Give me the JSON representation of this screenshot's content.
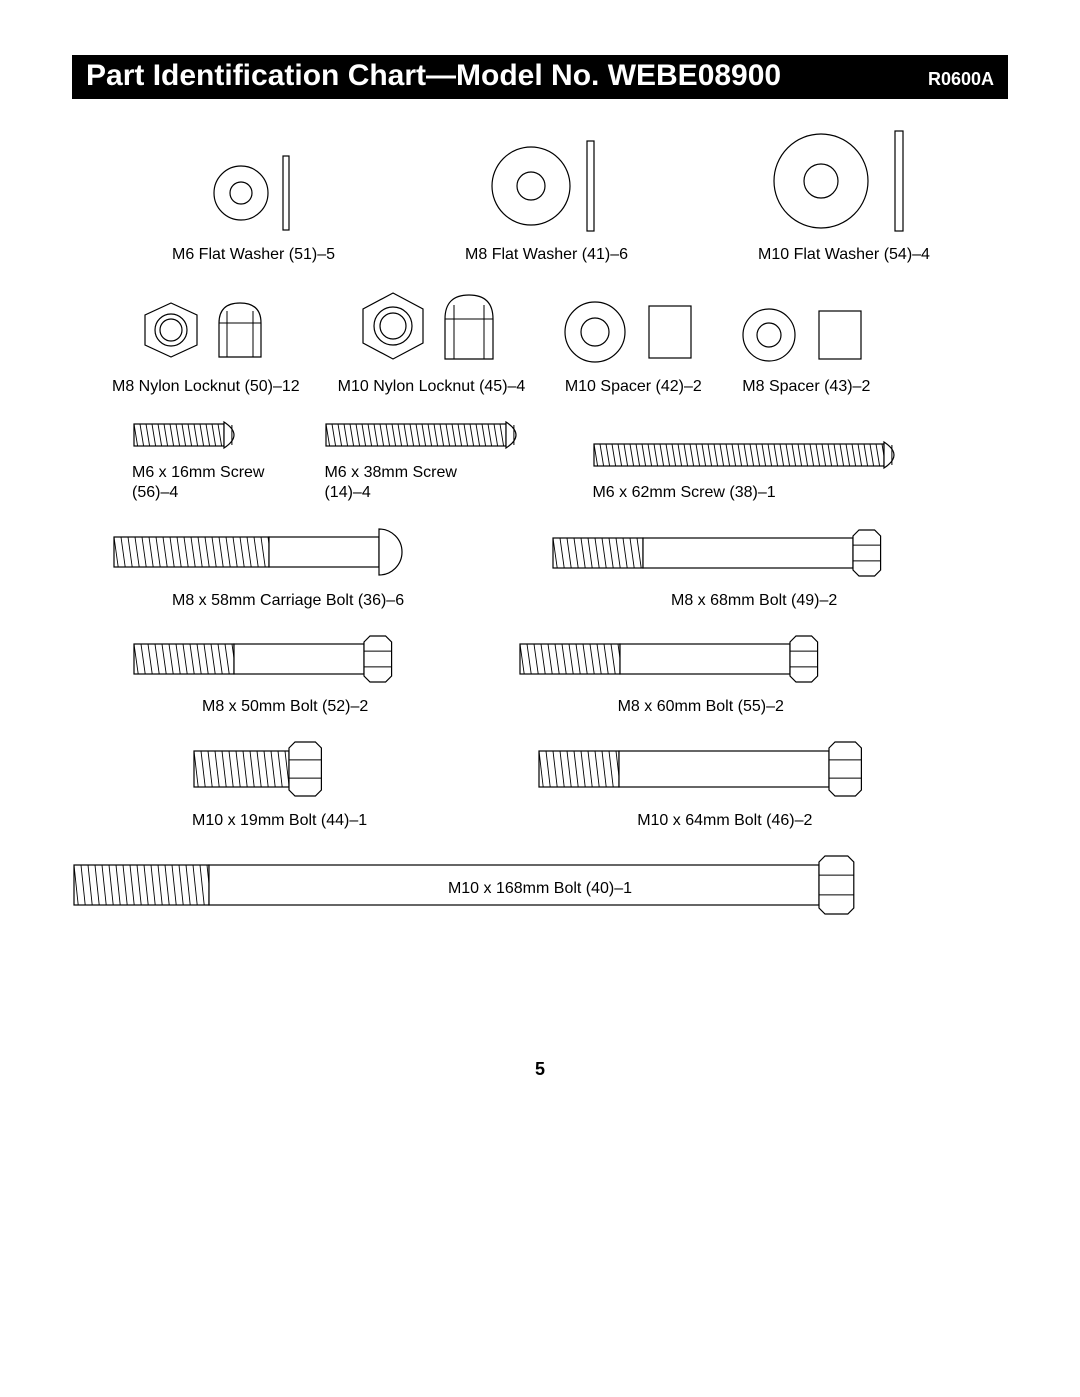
{
  "header": {
    "title_main": "Part Identification Chart—Model No. WEBE08900",
    "title_code": "R0600A"
  },
  "parts": {
    "m6_flat_washer": {
      "label": "M6 Flat Washer (51)–5",
      "outer_d": 55,
      "inner_d": 22,
      "side_w": 6,
      "side_h": 74
    },
    "m8_flat_washer": {
      "label": "M8 Flat Washer (41)–6",
      "outer_d": 78,
      "inner_d": 28,
      "side_w": 7,
      "side_h": 90
    },
    "m10_flat_washer": {
      "label": "M10 Flat Washer (54)–4",
      "outer_d": 95,
      "inner_d": 34,
      "side_w": 8,
      "side_h": 100
    },
    "m8_nylon_locknut": {
      "label": "M8 Nylon Locknut (50)–12",
      "hex_d": 52,
      "hole_d": 24,
      "cap_w": 42,
      "cap_h": 58
    },
    "m10_nylon_locknut": {
      "label": "M10 Nylon Locknut (45)–4",
      "hex_d": 60,
      "hole_d": 28,
      "cap_w": 48,
      "cap_h": 64
    },
    "m10_spacer": {
      "label": "M10 Spacer (42)–2",
      "outer_d": 60,
      "inner_d": 28,
      "side_w": 42,
      "side_h": 52
    },
    "m8_spacer": {
      "label": "M8 Spacer (43)–2",
      "outer_d": 52,
      "inner_d": 24,
      "side_w": 42,
      "side_h": 48
    },
    "m6x16_screw": {
      "label": "M6 x 16mm Screw\n(56)–4",
      "thread_len": 90,
      "head_w": 18,
      "shaft_h": 22
    },
    "m6x38_screw": {
      "label": "M6 x 38mm Screw\n(14)–4",
      "thread_len": 180,
      "head_w": 18,
      "shaft_h": 22
    },
    "m6x62_screw": {
      "label": "M6 x 62mm Screw (38)–1",
      "thread_len": 290,
      "head_w": 18,
      "shaft_h": 22
    },
    "m8x58_carriage": {
      "label": "M8 x 58mm Carriage Bolt (36)–6",
      "thread_len": 155,
      "shank_len": 110,
      "head_w": 46,
      "shaft_h": 30
    },
    "m8x68_bolt": {
      "label": "M8 x 68mm Bolt (49)–2",
      "thread_len": 90,
      "shank_len": 210,
      "head_w": 46,
      "shaft_h": 30
    },
    "m8x50_bolt": {
      "label": "M8 x 50mm Bolt (52)–2",
      "thread_len": 100,
      "shank_len": 130,
      "head_w": 46,
      "shaft_h": 30
    },
    "m8x60_bolt": {
      "label": "M8 x 60mm Bolt (55)–2",
      "thread_len": 100,
      "shank_len": 170,
      "head_w": 46,
      "shaft_h": 30
    },
    "m10x19_bolt": {
      "label": "M10 x 19mm Bolt (44)–1",
      "thread_len": 95,
      "shank_len": 0,
      "head_w": 54,
      "shaft_h": 36
    },
    "m10x64_bolt": {
      "label": "M10 x 64mm Bolt (46)–2",
      "thread_len": 80,
      "shank_len": 210,
      "head_w": 54,
      "shaft_h": 36
    },
    "m10x168_bolt": {
      "label": "M10 x 168mm Bolt (40)–1",
      "thread_len": 135,
      "shank_len": 610,
      "head_w": 58,
      "shaft_h": 40
    }
  },
  "page_number": "5",
  "colors": {
    "stroke": "#000000",
    "bg": "#ffffff"
  }
}
